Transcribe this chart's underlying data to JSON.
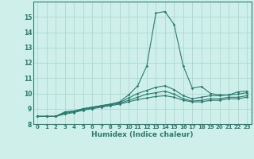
{
  "xlabel": "Humidex (Indice chaleur)",
  "xlim": [
    -0.5,
    23.5
  ],
  "ylim": [
    8,
    16
  ],
  "yticks": [
    8,
    9,
    10,
    11,
    12,
    13,
    14,
    15
  ],
  "xticks": [
    0,
    1,
    2,
    3,
    4,
    5,
    6,
    7,
    8,
    9,
    10,
    11,
    12,
    13,
    14,
    15,
    16,
    17,
    18,
    19,
    20,
    21,
    22,
    23
  ],
  "bg_color": "#cff0ea",
  "grid_color": "#aad9d2",
  "line_color": "#2a7a6e",
  "lines": [
    [
      8.5,
      8.5,
      8.5,
      8.8,
      8.85,
      9.0,
      9.1,
      9.2,
      9.3,
      9.45,
      9.9,
      10.5,
      11.8,
      15.25,
      15.35,
      14.5,
      11.8,
      10.35,
      10.45,
      10.0,
      9.9,
      9.9,
      10.1,
      10.15
    ],
    [
      8.5,
      8.5,
      8.5,
      8.75,
      8.85,
      9.0,
      9.1,
      9.2,
      9.3,
      9.4,
      9.7,
      10.0,
      10.2,
      10.4,
      10.5,
      10.25,
      9.85,
      9.65,
      9.75,
      9.85,
      9.85,
      9.9,
      9.95,
      10.05
    ],
    [
      8.5,
      8.5,
      8.5,
      8.7,
      8.8,
      8.95,
      9.05,
      9.15,
      9.25,
      9.35,
      9.55,
      9.75,
      9.95,
      10.05,
      10.15,
      9.95,
      9.65,
      9.5,
      9.55,
      9.65,
      9.65,
      9.75,
      9.75,
      9.85
    ],
    [
      8.5,
      8.5,
      8.5,
      8.65,
      8.75,
      8.9,
      9.0,
      9.1,
      9.2,
      9.3,
      9.45,
      9.6,
      9.7,
      9.8,
      9.85,
      9.75,
      9.55,
      9.45,
      9.45,
      9.55,
      9.55,
      9.65,
      9.65,
      9.75
    ]
  ]
}
